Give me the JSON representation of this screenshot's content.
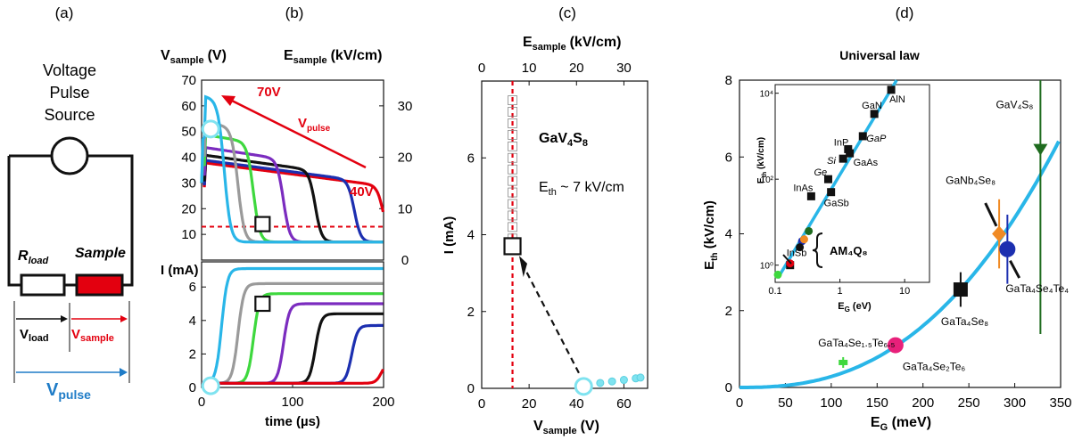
{
  "panel_letters": [
    "(a)",
    "(b)",
    "(c)",
    "(d)"
  ],
  "circuit": {
    "source_label_lines": [
      "Voltage",
      "Pulse",
      "Source"
    ],
    "rload": "R",
    "rload_sub": "load",
    "sample": "Sample",
    "vload": "V",
    "vload_sub": "load",
    "vsample": "V",
    "vsample_sub": "sample",
    "vpulse": "V",
    "vpulse_sub": "pulse",
    "colors": {
      "sample_fill": "#e3000f",
      "vsample_arrow": "#e3000f",
      "vpulse_arrow": "#1f7cc7"
    }
  },
  "chart_data": [
    {
      "panel": "(b) top",
      "type": "line",
      "xlabel": "",
      "ylabel_left": "V",
      "ylabel_left_sub": "sample",
      "ylabel_left_unit": "(V)",
      "ylabel_right": "E",
      "ylabel_right_sub": "sample",
      "ylabel_right_unit": "(kV/cm)",
      "xlim": [
        0,
        200
      ],
      "ylim": [
        0,
        70
      ],
      "ylim_right": [
        0,
        35
      ],
      "yticks": [
        "10",
        "20",
        "30",
        "40",
        "50",
        "60",
        "70"
      ],
      "yticks_right": [
        "0",
        "10",
        "20",
        "30"
      ],
      "annotations": {
        "v_high": "70V",
        "v_low": "40V",
        "vpulse": "V",
        "vpulse_sub": "pulse"
      },
      "threshold": 13,
      "series": [
        {
          "color": "#e3000f",
          "plateau": 38,
          "t_switch": 200
        },
        {
          "color": "#1c2fb0",
          "plateau": 39,
          "t_switch": 168
        },
        {
          "color": "#111111",
          "plateau": 41,
          "t_switch": 125
        },
        {
          "color": "#7b2cbf",
          "plateau": 44,
          "t_switch": 90
        },
        {
          "color": "#3ed83e",
          "plateau": 49,
          "t_switch": 57
        },
        {
          "color": "#9a9a9a",
          "plateau": 54,
          "t_switch": 40
        },
        {
          "color": "#29b6e8",
          "plateau": 64,
          "t_switch": 25
        }
      ],
      "markers": [
        {
          "shape": "circle",
          "t": 10,
          "v": 51
        },
        {
          "shape": "square",
          "t": 67,
          "v": 14
        }
      ]
    },
    {
      "panel": "(b) bottom",
      "type": "line",
      "xlabel": "time (µs)",
      "ylabel": "I (mA)",
      "xlim": [
        0,
        200
      ],
      "ylim": [
        0,
        7.5
      ],
      "xticks": [
        "0",
        "100",
        "200"
      ],
      "yticks": [
        "0",
        "2",
        "4",
        "6"
      ],
      "series": [
        {
          "color": "#29b6e8",
          "final": 7.1,
          "t_switch": 22
        },
        {
          "color": "#9a9a9a",
          "final": 6.2,
          "t_switch": 40
        },
        {
          "color": "#3ed83e",
          "final": 5.6,
          "t_switch": 57
        },
        {
          "color": "#7b2cbf",
          "final": 5.0,
          "t_switch": 90
        },
        {
          "color": "#111111",
          "final": 4.4,
          "t_switch": 125
        },
        {
          "color": "#1c2fb0",
          "final": 3.7,
          "t_switch": 165
        },
        {
          "color": "#e3000f",
          "final": 1.6,
          "t_switch": 198
        }
      ],
      "markers": [
        {
          "shape": "circle",
          "t": 10,
          "i": 0.1
        },
        {
          "shape": "square",
          "t": 67,
          "i": 5.0
        }
      ]
    },
    {
      "panel": "(c)",
      "type": "scatter",
      "xlabel": "V",
      "xlabel_sub": "sample",
      "xlabel_unit": "(V)",
      "ylabel": "I (mA)",
      "top_label": "E",
      "top_label_sub": "sample",
      "top_label_unit": "(kV/cm)",
      "xlim": [
        0,
        70
      ],
      "ylim": [
        0,
        8
      ],
      "xticks": [
        "0",
        "20",
        "40",
        "60"
      ],
      "top_xticks": [
        "0",
        "10",
        "20",
        "30"
      ],
      "yticks": [
        "0",
        "2",
        "4",
        "6"
      ],
      "material": "GaV",
      "material_sub1": "4",
      "material_mid": "S",
      "material_sub2": "8",
      "eth_label": "E",
      "eth_sub": "th",
      "eth_value": " ~ 7 kV/cm",
      "threshold_v": 13,
      "vertical_points_i": [
        3.9,
        4.2,
        4.5,
        4.8,
        5.1,
        5.4,
        5.7,
        6.0,
        6.3,
        6.6,
        6.9,
        7.2,
        7.5
      ],
      "low_branch": {
        "v": [
          42,
          45,
          50,
          55,
          60,
          65,
          67
        ],
        "i": [
          0.08,
          0.1,
          0.14,
          0.18,
          0.22,
          0.26,
          0.28
        ]
      },
      "markers": [
        {
          "shape": "square",
          "v": 13,
          "i": 3.7
        },
        {
          "shape": "circle",
          "v": 43,
          "i": 0.05
        }
      ]
    },
    {
      "panel": "(d)",
      "type": "scatter",
      "title": "Universal law",
      "xlabel": "E",
      "xlabel_sub": "G",
      "xlabel_unit": " (meV)",
      "ylabel": "E",
      "ylabel_sub": "th",
      "ylabel_unit": " (kV/cm)",
      "xlim": [
        0,
        350
      ],
      "ylim": [
        0,
        8
      ],
      "xticks": [
        "0",
        "50",
        "100",
        "150",
        "200",
        "250",
        "300",
        "350"
      ],
      "yticks": [
        "0",
        "2",
        "4",
        "6",
        "8"
      ],
      "curve": "power law fit",
      "points": [
        {
          "label": "GaV4S8",
          "x": 328,
          "y": 6.2,
          "color": "#1e6b1e",
          "marker": "triangle"
        },
        {
          "label": "GaNb4Se8",
          "x": 283,
          "y": 4.0,
          "color": "#f08a24",
          "marker": "diamond"
        },
        {
          "label": "GaTa4Se4Te4",
          "x": 292,
          "y": 3.6,
          "color": "#1c2fb0",
          "marker": "circle"
        },
        {
          "label": "GaTa4Se8",
          "x": 241,
          "y": 2.55,
          "color": "#111111",
          "marker": "square"
        },
        {
          "label": "GaTa4Se2Te6",
          "x": 170,
          "y": 1.1,
          "color": "#e8207a",
          "marker": "hexagon"
        },
        {
          "label": "GaTa4Se1.5Te6.5",
          "x": 113,
          "y": 0.65,
          "color": "#3ed83e",
          "marker": "bar"
        }
      ],
      "point_labels": {
        "GaV4S8": "GaV₄S₈",
        "GaNb4Se8": "GaNb₄Se₈",
        "GaTa4Se4Te4": "GaTa₄Se₄Te₄",
        "GaTa4Se8": "GaTa₄Se₈",
        "GaTa4Se2Te6": "GaTa₄Se₂Te₆",
        "GaTa4Se1.5Te6.5": "GaTa₄Se₁.₅Te₆.₅"
      },
      "inset": {
        "type": "scatter",
        "xlabel": "E",
        "xlabel_sub": "G",
        "xlabel_unit": " (eV)",
        "ylabel": "E",
        "ylabel_sub": "th",
        "ylabel_unit": " (kV/cm)",
        "xscale": "log",
        "yscale": "log",
        "xticks": [
          "0.1",
          "1",
          "10"
        ],
        "yticks": [
          "10⁰",
          "10²",
          "10⁴"
        ],
        "group_label": "AM₄Q₈",
        "points": [
          {
            "label": "AlN",
            "x": 6.2,
            "y": 12000
          },
          {
            "label": "GaN",
            "x": 3.4,
            "y": 3300
          },
          {
            "label": "GaP",
            "x": 2.26,
            "y": 1000
          },
          {
            "label": "InP",
            "x": 1.34,
            "y": 500
          },
          {
            "label": "Si",
            "x": 1.12,
            "y": 300
          },
          {
            "label": "GaAs",
            "x": 1.42,
            "y": 400
          },
          {
            "label": "Ge",
            "x": 0.66,
            "y": 100
          },
          {
            "label": "GaSb",
            "x": 0.73,
            "y": 50
          },
          {
            "label": "InAs",
            "x": 0.36,
            "y": 40
          },
          {
            "label": "InSb",
            "x": 0.17,
            "y": 1.0
          }
        ],
        "am4q8_points": [
          {
            "x": 0.17,
            "y": 1.1,
            "color": "#e3000f"
          },
          {
            "x": 0.26,
            "y": 3.6,
            "color": "#1c2fb0"
          },
          {
            "x": 0.24,
            "y": 2.6,
            "color": "#111111"
          },
          {
            "x": 0.28,
            "y": 4.0,
            "color": "#f08a24"
          },
          {
            "x": 0.33,
            "y": 6.2,
            "color": "#1e6b1e"
          },
          {
            "x": 0.11,
            "y": 0.6,
            "color": "#3ed83e"
          }
        ]
      }
    }
  ],
  "colors": {
    "fit_line": "#29b6e8",
    "threshold": "#e3000f",
    "annotation_red": "#e3000f"
  }
}
